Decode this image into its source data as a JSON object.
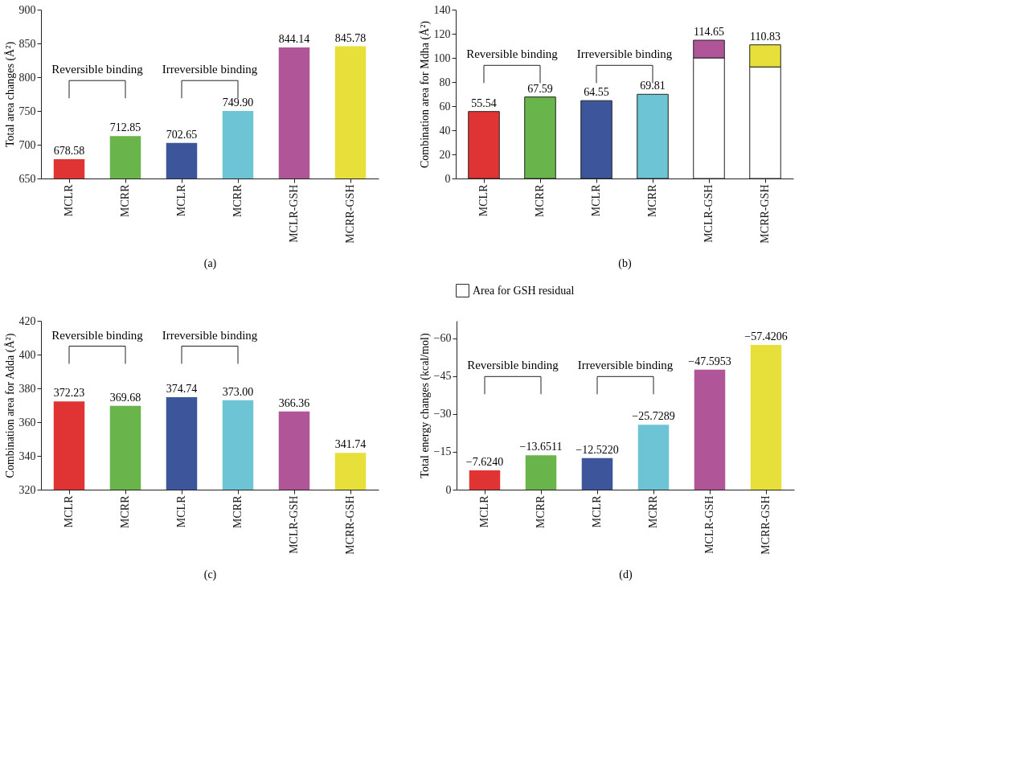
{
  "chart_data": [
    {
      "type": "bar",
      "ylabel": "Total area changes (Å²)",
      "xlabel": "(a)",
      "categories": [
        "MCLR",
        "MCRR",
        "MCLR",
        "MCRR",
        "MCLR-GSH",
        "MCRR-GSH"
      ],
      "values": [
        678.58,
        712.85,
        702.65,
        749.9,
        844.14,
        845.78
      ],
      "value_labels": [
        "678.58",
        "712.85",
        "702.65",
        "749.90",
        "844.14",
        "845.78"
      ],
      "colors": [
        "#e03434",
        "#6ab54b",
        "#3c559b",
        "#6cc4d4",
        "#b05597",
        "#e8e03a"
      ],
      "ylim": [
        650,
        900
      ],
      "yticks": [
        650,
        700,
        750,
        800,
        850,
        900
      ],
      "annotations": [
        "Reversible binding",
        "Irreversible binding"
      ]
    },
    {
      "type": "bar",
      "stacked": true,
      "ylabel": "Combination area for Mdha (Å²)",
      "xlabel": "(b)",
      "categories": [
        "MCLR",
        "MCRR",
        "MCLR",
        "MCRR",
        "MCLR-GSH",
        "MCRR-GSH"
      ],
      "series": [
        {
          "name": "Area for GSH residual",
          "color": "#ffffff",
          "values": [
            null,
            null,
            null,
            null,
            100,
            92.5
          ]
        },
        {
          "colors": [
            "#e03434",
            "#6ab54b",
            "#3c559b",
            "#6cc4d4",
            "#b05597",
            "#e8e03a"
          ],
          "values": [
            55.54,
            67.59,
            64.55,
            69.81,
            14.65,
            18.33
          ]
        }
      ],
      "totals": [
        "55.54",
        "67.59",
        "64.55",
        "69.81",
        "114.65",
        "110.83"
      ],
      "legend": "bottom",
      "ylim": [
        0,
        140
      ],
      "yticks": [
        0,
        20,
        40,
        60,
        80,
        100,
        120,
        140
      ],
      "annotations": [
        "Reversible binding",
        "Irreversible binding"
      ]
    },
    {
      "type": "bar",
      "ylabel": "Combination area for Adda (Å²)",
      "xlabel": "(c)",
      "categories": [
        "MCLR",
        "MCRR",
        "MCLR",
        "MCRR",
        "MCLR-GSH",
        "MCRR-GSH"
      ],
      "values": [
        372.23,
        369.68,
        374.74,
        373.0,
        366.36,
        341.74
      ],
      "value_labels": [
        "372.23",
        "369.68",
        "374.74",
        "373.00",
        "366.36",
        "341.74"
      ],
      "colors": [
        "#e03434",
        "#6ab54b",
        "#3c559b",
        "#6cc4d4",
        "#b05597",
        "#e8e03a"
      ],
      "ylim": [
        320,
        420
      ],
      "yticks": [
        320,
        340,
        360,
        380,
        400,
        420
      ],
      "annotations": [
        "Reversible binding",
        "Irreversible binding"
      ]
    },
    {
      "type": "bar",
      "ylabel": "Total energy changes (kcal/mol)",
      "xlabel": "(d)",
      "categories": [
        "MCLR",
        "MCRR",
        "MCLR",
        "MCRR",
        "MCLR-GSH",
        "MCRR-GSH"
      ],
      "values": [
        -7.624,
        -13.6511,
        -12.522,
        -25.7289,
        -47.5953,
        -57.4206
      ],
      "value_labels": [
        "−7.6240",
        "−13.6511",
        "−12.5220",
        "−25.7289",
        "−47.5953",
        "−57.4206"
      ],
      "colors": [
        "#e03434",
        "#6ab54b",
        "#3c559b",
        "#6cc4d4",
        "#b05597",
        "#e8e03a"
      ],
      "ylim": [
        0,
        -67
      ],
      "yticks": [
        0,
        {
          "value": -15,
          "label": "−15"
        },
        {
          "value": -30,
          "label": "−30"
        },
        {
          "value": -45,
          "label": "−45"
        },
        {
          "value": -60,
          "label": "−60"
        }
      ],
      "annotations": [
        "Reversible binding",
        "Irreversible binding"
      ]
    }
  ]
}
